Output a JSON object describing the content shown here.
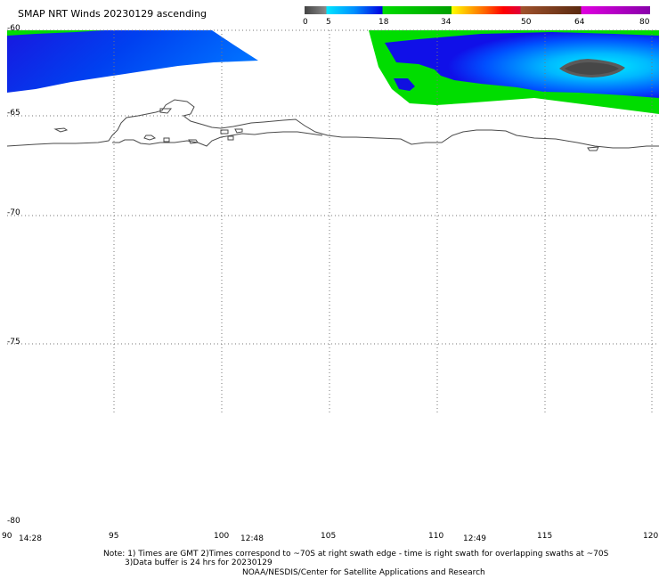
{
  "title": "SMAP NRT Winds 20230129 ascending",
  "colorbar": {
    "labels": [
      "0",
      "5",
      "18",
      "34",
      "50",
      "64",
      "80"
    ],
    "segments": [
      {
        "from": 0,
        "to": 5,
        "colors": [
          "#444444",
          "#8a8a8a"
        ]
      },
      {
        "from": 5,
        "to": 18,
        "colors": [
          "#00e8ff",
          "#0090ff",
          "#0000e0"
        ]
      },
      {
        "from": 18,
        "to": 34,
        "colors": [
          "#00dd00",
          "#00a000"
        ]
      },
      {
        "from": 34,
        "to": 50,
        "colors": [
          "#ffff00",
          "#ffb000",
          "#ff6000",
          "#ff0000",
          "#e0003a"
        ]
      },
      {
        "from": 50,
        "to": 64,
        "colors": [
          "#a0522d",
          "#5a2a10"
        ]
      },
      {
        "from": 64,
        "to": 80,
        "colors": [
          "#e000e0",
          "#8800aa"
        ]
      }
    ]
  },
  "latitude_labels": [
    "-60",
    "-65",
    "-70",
    "-75",
    "-80"
  ],
  "longitude_labels": [
    "90",
    "95",
    "100",
    "105",
    "110",
    "115",
    "120"
  ],
  "time_labels": [
    "14:28",
    "12:48",
    "12:49"
  ],
  "notes": {
    "line1": "Note: 1) Times are GMT 2)Times correspond to ~70S at right swath edge - time is right swath for overlapping swaths at ~70S",
    "line2": "3)Data buffer is 24 hrs for 20230129",
    "line3": "NOAA/NESDIS/Center for Satellite Applications and Research"
  }
}
